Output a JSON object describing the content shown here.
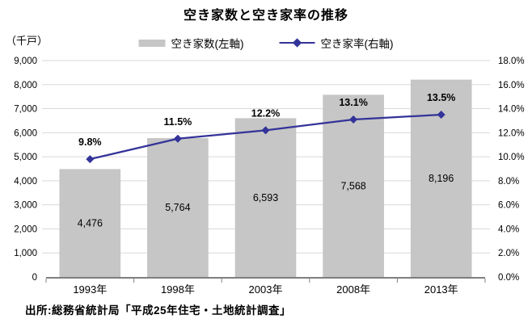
{
  "title": "空き家数と空き家率の推移",
  "legend": [
    {
      "label": "空き家数(左軸)",
      "type": "bar-swatch",
      "color": "#c6c6c6"
    },
    {
      "label": "空き家率(右軸)",
      "type": "line-marker",
      "color": "#333399"
    }
  ],
  "source": "出所:総務省統計局「平成25年住宅・土地統計調査」",
  "chart_data": {
    "type": "bar+line combo",
    "categories": [
      "1993年",
      "1998年",
      "2003年",
      "2008年",
      "2013年"
    ],
    "series": [
      {
        "name": "空き家数(左軸)",
        "type": "bar",
        "axis": "left",
        "values": [
          4476,
          5764,
          6593,
          7568,
          8196
        ],
        "labels": [
          "4,476",
          "5,764",
          "6,593",
          "7,568",
          "8,196"
        ],
        "color": "#c6c6c6"
      },
      {
        "name": "空き家率(右軸)",
        "type": "line",
        "axis": "right",
        "values": [
          9.8,
          11.5,
          12.2,
          13.1,
          13.5
        ],
        "labels": [
          "9.8%",
          "11.5%",
          "12.2%",
          "13.1%",
          "13.5%"
        ],
        "color": "#333399"
      }
    ],
    "left_axis": {
      "unit": "（千戸）",
      "min": 0,
      "max": 9000,
      "step": 1000,
      "tick_labels": [
        "0",
        "1,000",
        "2,000",
        "3,000",
        "4,000",
        "5,000",
        "6,000",
        "7,000",
        "8,000",
        "9,000"
      ]
    },
    "right_axis": {
      "min": 0,
      "max": 18,
      "step": 2,
      "tick_labels": [
        "0.0%",
        "2.0%",
        "4.0%",
        "6.0%",
        "8.0%",
        "10.0%",
        "12.0%",
        "14.0%",
        "16.0%",
        "18.0%"
      ]
    },
    "grid": true,
    "gridline_color": "#d9d9d9",
    "axis_line_color": "#7f7f7f",
    "legend_position": "top"
  }
}
